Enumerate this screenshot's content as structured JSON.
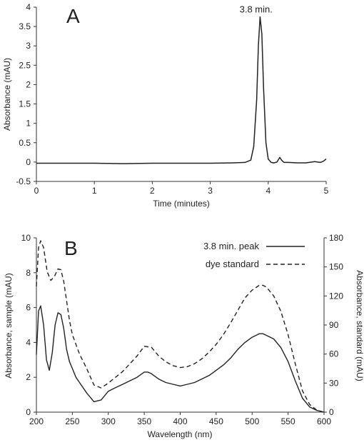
{
  "chart_data": [
    {
      "type": "line",
      "panel_label": "A",
      "xlabel": "Time (minutes)",
      "ylabel": "Absorbance (mAU)",
      "xlim": [
        0,
        5
      ],
      "ylim": [
        -0.5,
        4
      ],
      "x_ticks": [
        0,
        1,
        2,
        3,
        4,
        5
      ],
      "y_ticks": [
        -0.5,
        0,
        0.5,
        1,
        1.5,
        2,
        2.5,
        3,
        3.5,
        4
      ],
      "annotation": {
        "text": "3.8 min.",
        "x": 3.85,
        "y": 3.75
      },
      "grid": false,
      "series": [
        {
          "style": "solid",
          "x": [
            0,
            0.5,
            1,
            1.5,
            2,
            2.5,
            3,
            3.4,
            3.6,
            3.7,
            3.75,
            3.8,
            3.83,
            3.86,
            3.89,
            3.92,
            3.96,
            4.0,
            4.05,
            4.1,
            4.15,
            4.2,
            4.23,
            4.27,
            4.35,
            4.5,
            4.65,
            4.75,
            4.8,
            4.9,
            4.95,
            5.0
          ],
          "y": [
            -0.03,
            -0.03,
            -0.03,
            -0.04,
            -0.03,
            -0.03,
            -0.03,
            -0.02,
            -0.01,
            0.05,
            0.4,
            1.6,
            3.0,
            3.75,
            3.3,
            1.9,
            0.5,
            0.08,
            -0.01,
            -0.02,
            0.0,
            0.12,
            0.05,
            -0.01,
            -0.01,
            -0.02,
            -0.02,
            0.0,
            0.01,
            -0.01,
            0.02,
            0.08
          ]
        }
      ]
    },
    {
      "type": "line",
      "panel_label": "B",
      "xlabel": "Wavelength (nm)",
      "ylabel": "Absorbance, sample (mAU)",
      "y2label": "Absorbance, standard (mAU)",
      "xlim": [
        200,
        600
      ],
      "ylim": [
        0,
        10
      ],
      "y2lim": [
        0,
        180
      ],
      "x_ticks": [
        200,
        250,
        300,
        350,
        400,
        450,
        500,
        550,
        600
      ],
      "y_ticks": [
        0,
        2,
        4,
        6,
        8,
        10
      ],
      "y2_ticks": [
        0,
        30,
        60,
        90,
        120,
        150,
        180
      ],
      "legend_position": "top-right",
      "grid": false,
      "series": [
        {
          "name": "3.8 min. peak",
          "style": "solid",
          "axis": "left",
          "x": [
            200,
            203,
            206,
            210,
            214,
            218,
            222,
            226,
            230,
            234,
            238,
            242,
            246,
            250,
            255,
            260,
            270,
            280,
            290,
            300,
            310,
            320,
            330,
            340,
            350,
            355,
            360,
            370,
            380,
            390,
            400,
            410,
            420,
            430,
            440,
            450,
            460,
            470,
            480,
            490,
            500,
            510,
            515,
            520,
            530,
            540,
            550,
            560,
            570,
            580,
            590,
            600
          ],
          "y": [
            3.3,
            5.8,
            6.1,
            5.0,
            3.0,
            2.4,
            3.4,
            5.0,
            5.7,
            5.6,
            4.8,
            3.6,
            2.9,
            2.5,
            2.0,
            1.7,
            1.1,
            0.6,
            0.7,
            1.2,
            1.4,
            1.6,
            1.8,
            2.0,
            2.3,
            2.3,
            2.2,
            1.9,
            1.7,
            1.6,
            1.5,
            1.6,
            1.7,
            1.9,
            2.1,
            2.4,
            2.7,
            3.1,
            3.6,
            4.0,
            4.3,
            4.5,
            4.5,
            4.4,
            4.2,
            3.7,
            2.9,
            1.8,
            0.8,
            0.3,
            0.1,
            0.0
          ]
        },
        {
          "name": "dye standard",
          "style": "dashed",
          "axis": "right",
          "x": [
            200,
            203,
            206,
            210,
            215,
            220,
            225,
            230,
            234,
            238,
            242,
            246,
            250,
            260,
            270,
            280,
            290,
            300,
            310,
            320,
            330,
            340,
            350,
            360,
            370,
            380,
            390,
            400,
            410,
            420,
            430,
            440,
            450,
            460,
            470,
            480,
            490,
            500,
            510,
            515,
            520,
            530,
            540,
            550,
            560,
            570,
            580,
            590,
            600
          ],
          "y": [
            130,
            170,
            177,
            170,
            145,
            136,
            140,
            148,
            147,
            135,
            115,
            95,
            80,
            60,
            45,
            28,
            25,
            30,
            36,
            42,
            50,
            58,
            68,
            67,
            58,
            52,
            48,
            46,
            47,
            50,
            55,
            62,
            70,
            80,
            92,
            105,
            118,
            126,
            131,
            131,
            129,
            120,
            104,
            80,
            50,
            22,
            8,
            2,
            0
          ]
        }
      ]
    }
  ]
}
